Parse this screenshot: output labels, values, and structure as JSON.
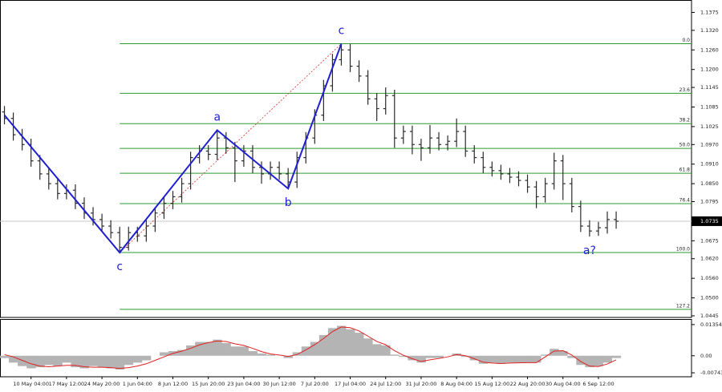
{
  "chart_data": {
    "type": "ohlc",
    "categories": [
      null,
      null,
      null,
      "10 May 04:00",
      null,
      null,
      null,
      "17 May 12:00",
      null,
      null,
      null,
      "24 May 20:00",
      null,
      null,
      null,
      "1 Jun 04:00",
      null,
      null,
      null,
      "8 Jun 12:00",
      null,
      null,
      null,
      "15 Jun 20:00",
      null,
      null,
      null,
      "23 Jun 04:00",
      null,
      null,
      null,
      "30 Jun 12:00",
      null,
      null,
      null,
      "7 Jul 20:00",
      null,
      null,
      null,
      "17 Jul 04:00",
      null,
      null,
      null,
      "24 Jul 12:00",
      null,
      null,
      null,
      "31 Jul 20:00",
      null,
      null,
      null,
      "8 Aug 04:00",
      null,
      null,
      null,
      "15 Aug 12:00",
      null,
      null,
      null,
      "22 Aug 20:00",
      null,
      null,
      null,
      "30 Aug 04:00",
      null,
      null,
      null,
      "6 Sep 12:00",
      null,
      null
    ],
    "ohlc": {
      "color": "#2b2b2b",
      "open": [
        1.107,
        1.105,
        1.1,
        1.097,
        1.092,
        1.088,
        1.085,
        1.082,
        1.083,
        1.079,
        1.076,
        1.074,
        1.072,
        1.07,
        1.0655,
        1.07,
        1.069,
        1.072,
        1.076,
        1.079,
        1.081,
        1.085,
        1.093,
        1.095,
        1.094,
        1.099,
        1.096,
        1.092,
        1.095,
        1.09,
        1.088,
        1.09,
        1.088,
        1.0855,
        1.093,
        1.099,
        1.106,
        1.115,
        1.123,
        1.126,
        1.121,
        1.118,
        1.111,
        1.108,
        1.112,
        1.099,
        1.101,
        1.097,
        1.096,
        1.099,
        1.097,
        1.098,
        1.101,
        1.095,
        1.093,
        1.09,
        1.089,
        1.088,
        1.087,
        1.086,
        1.084,
        1.081,
        1.085,
        1.092,
        1.085,
        1.078,
        1.072,
        1.0705,
        1.0715,
        1.074
      ],
      "high": [
        1.1088,
        1.1068,
        1.1018,
        1.0988,
        1.0938,
        1.0898,
        1.0868,
        1.0848,
        1.0848,
        1.0808,
        1.0778,
        1.0758,
        1.0738,
        1.0718,
        1.0718,
        1.0718,
        1.0738,
        1.0778,
        1.0808,
        1.0828,
        1.0868,
        1.0948,
        1.0968,
        1.0968,
        1.1014,
        1.1008,
        1.0978,
        1.0968,
        1.0968,
        1.0918,
        1.0918,
        1.0918,
        1.0898,
        1.0948,
        1.1008,
        1.1078,
        1.1168,
        1.1248,
        1.1279,
        1.1278,
        1.1228,
        1.1198,
        1.1128,
        1.1145,
        1.1138,
        1.1028,
        1.1028,
        1.0988,
        1.103,
        1.1008,
        1.0998,
        1.105,
        1.1028,
        1.0968,
        1.0948,
        1.0918,
        1.0908,
        1.0898,
        1.0888,
        1.0878,
        1.0858,
        1.0868,
        1.0945,
        1.0938,
        1.0868,
        1.0798,
        1.0738,
        1.0733,
        1.0765,
        1.0765
      ],
      "low": [
        1.1032,
        1.0982,
        1.0952,
        1.0902,
        1.0862,
        1.0832,
        1.0802,
        1.0802,
        1.0772,
        1.0742,
        1.0722,
        1.0702,
        1.0682,
        1.0639,
        1.0645,
        1.0672,
        1.0672,
        1.0702,
        1.0742,
        1.0772,
        1.0792,
        1.0832,
        1.0912,
        1.0922,
        1.0922,
        1.0942,
        1.0855,
        1.0902,
        1.0882,
        1.085,
        1.0862,
        1.0862,
        1.0835,
        1.0837,
        1.0912,
        1.0972,
        1.1042,
        1.1132,
        1.1212,
        1.1192,
        1.1162,
        1.1092,
        1.1042,
        1.1062,
        1.096,
        1.0972,
        1.094,
        1.092,
        1.0942,
        1.0952,
        1.0952,
        1.0962,
        1.0932,
        1.0912,
        1.0882,
        1.0872,
        1.0862,
        1.0852,
        1.0842,
        1.0822,
        1.0775,
        1.0792,
        1.0832,
        1.08,
        1.0762,
        1.0702,
        1.0688,
        1.069,
        1.0697,
        1.0712
      ],
      "close": [
        1.105,
        1.1,
        1.097,
        1.092,
        1.088,
        1.085,
        1.082,
        1.083,
        1.079,
        1.076,
        1.074,
        1.072,
        1.07,
        1.0655,
        1.07,
        1.069,
        1.072,
        1.076,
        1.079,
        1.081,
        1.085,
        1.093,
        1.095,
        1.094,
        1.099,
        1.096,
        1.092,
        1.095,
        1.09,
        1.088,
        1.09,
        1.088,
        1.0855,
        1.093,
        1.099,
        1.106,
        1.115,
        1.123,
        1.126,
        1.121,
        1.118,
        1.111,
        1.108,
        1.112,
        1.099,
        1.101,
        1.097,
        1.096,
        1.099,
        1.097,
        1.098,
        1.101,
        1.095,
        1.093,
        1.09,
        1.089,
        1.088,
        1.087,
        1.086,
        1.084,
        1.081,
        1.085,
        1.092,
        1.085,
        1.078,
        1.072,
        1.0705,
        1.0715,
        1.074,
        1.0735
      ]
    },
    "ylim": [
      1.044,
      1.1413
    ],
    "yticks": [
      1.1375,
      {
        "value": 1.132,
        "label": "1.1320"
      },
      {
        "value": 1.126,
        "label": "1.1260"
      },
      {
        "value": 1.12,
        "label": "1.1200"
      },
      1.1145,
      1.1085,
      1.1025,
      {
        "value": 1.097,
        "label": "1.0970"
      },
      {
        "value": 1.091,
        "label": "1.0910"
      },
      {
        "value": 1.085,
        "label": "1.0850"
      },
      1.0795,
      1.0675,
      {
        "value": 1.062,
        "label": "1.0620"
      },
      {
        "value": 1.056,
        "label": "1.0560"
      },
      {
        "value": 1.05,
        "label": "1.0500"
      },
      1.0445
    ],
    "current_price": 1.0735,
    "fib_color": "#2e9b2e",
    "fib_levels": [
      {
        "label": "0.0",
        "price": 1.1279
      },
      {
        "label": "23.6",
        "price": 1.1127
      },
      {
        "label": "38.2",
        "price": 1.1034
      },
      {
        "label": "50.0",
        "price": 1.0958
      },
      {
        "label": "61.8",
        "price": 1.0882
      },
      {
        "label": "76.4",
        "price": 1.0789
      },
      {
        "label": "100.0",
        "price": 1.0639
      },
      {
        "label": "127.2",
        "price": 1.0465
      }
    ],
    "wave_color": "#1f1fd0",
    "zigzag": {
      "index": [
        0,
        13,
        24,
        32,
        38
      ],
      "price": [
        1.106,
        1.0639,
        1.1014,
        1.0835,
        1.1279
      ]
    },
    "wave_labels": [
      {
        "text": "c",
        "index": 13,
        "price": 1.0639,
        "position": "below"
      },
      {
        "text": "a",
        "index": 24,
        "price": 1.1014,
        "position": "above"
      },
      {
        "text": "b",
        "index": 32,
        "price": 1.0835,
        "position": "below"
      },
      {
        "text": "c",
        "index": 38,
        "price": 1.1279,
        "position": "above"
      },
      {
        "text": "a?",
        "index": 66,
        "price": 1.0688,
        "position": "below"
      }
    ],
    "macd": {
      "hist_color": "#b4b4b4",
      "signal_color": "#e02020",
      "histogram": [
        -0.001,
        -0.003,
        -0.0045,
        -0.0055,
        -0.005,
        -0.004,
        -0.0045,
        -0.003,
        -0.005,
        -0.0055,
        -0.0045,
        -0.005,
        -0.0055,
        -0.006,
        -0.004,
        -0.003,
        -0.002,
        0.0,
        0.0015,
        0.002,
        0.0025,
        0.0045,
        0.006,
        0.006,
        0.007,
        0.0055,
        0.004,
        0.004,
        0.002,
        0.001,
        0.0005,
        0.0,
        -0.001,
        0.0015,
        0.004,
        0.006,
        0.009,
        0.012,
        0.013,
        0.0115,
        0.01,
        0.0075,
        0.005,
        0.0045,
        0.0005,
        -0.0005,
        -0.002,
        -0.003,
        -0.001,
        -0.001,
        0.0,
        0.001,
        -0.0005,
        -0.002,
        -0.0035,
        -0.003,
        -0.0035,
        -0.003,
        -0.003,
        -0.003,
        -0.003,
        0.0005,
        0.003,
        0.002,
        -0.001,
        -0.004,
        -0.005,
        -0.0045,
        -0.003,
        -0.001
      ],
      "signal": [
        0.0005,
        -0.0005,
        -0.002,
        -0.0035,
        -0.0045,
        -0.0048,
        -0.0045,
        -0.0042,
        -0.0042,
        -0.0048,
        -0.005,
        -0.005,
        -0.0052,
        -0.0055,
        -0.0052,
        -0.0045,
        -0.0035,
        -0.002,
        -0.0005,
        0.001,
        0.002,
        0.0032,
        0.0047,
        0.0057,
        0.0064,
        0.0062,
        0.0052,
        0.0045,
        0.0032,
        0.0018,
        0.0008,
        0.0003,
        -0.0003,
        0.0005,
        0.0025,
        0.0048,
        0.0075,
        0.0105,
        0.0125,
        0.0122,
        0.0108,
        0.0085,
        0.0062,
        0.0048,
        0.0022,
        0.0002,
        -0.0013,
        -0.0025,
        -0.0018,
        -0.0012,
        -0.0005,
        0.0005,
        0.0,
        -0.0013,
        -0.0028,
        -0.0032,
        -0.0034,
        -0.0032,
        -0.0031,
        -0.003,
        -0.003,
        -0.0005,
        0.002,
        0.0022,
        0.0003,
        -0.0025,
        -0.0045,
        -0.0047,
        -0.0036,
        -0.0018
      ],
      "y2lim": [
        -0.00915,
        0.0156
      ],
      "y2ticks": [
        0.01354,
        {
          "value": 0,
          "label": "0.00"
        },
        -0.00743
      ]
    }
  }
}
